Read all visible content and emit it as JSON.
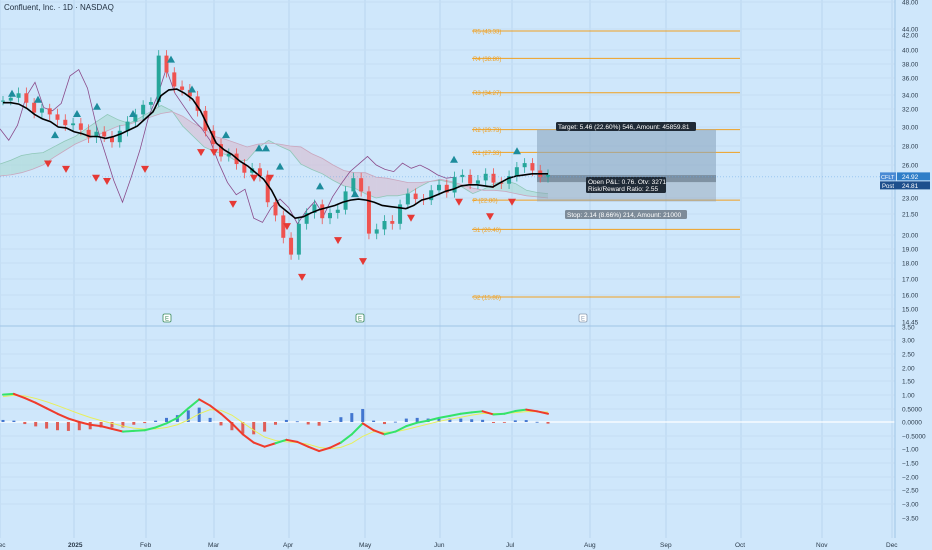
{
  "header": {
    "title": "Confluent, Inc. · 1D · NASDAQ"
  },
  "colors": {
    "bg": "#cfe7fb",
    "up": "#26a69a",
    "down": "#ef5350",
    "pivot": "#f0a020",
    "cloud_up": "#a8d8d0",
    "cloud_down": "#d8b8cc",
    "macd_line": "#ef3b2c",
    "macd_line_up": "#34e36a",
    "signal": "#e8ef5a",
    "hist_pos": "#2962c8",
    "hist_neg": "#e0443a",
    "axis_text": "#2a3a4a",
    "zero_line": "#ffffff"
  },
  "chart_data": {
    "type": "line",
    "symbol": "CFLT",
    "x_labels": [
      "Dec",
      "2025",
      "Feb",
      "Mar",
      "Apr",
      "May",
      "Jun",
      "Jul",
      "Aug",
      "Sep",
      "Oct",
      "Nov",
      "Dec"
    ],
    "price_axis": {
      "ticks": [
        "48.00",
        "44.00",
        "42.00",
        "40.00",
        "38.00",
        "36.00",
        "34.00",
        "32.00",
        "30.00",
        "28.00",
        "26.00",
        "23.00",
        "21.50",
        "20.00",
        "19.00",
        "18.00",
        "17.00",
        "16.00",
        "15.00",
        "14.45"
      ],
      "ylim": [
        14.45,
        48.0
      ]
    },
    "pivots": [
      {
        "label": "R5 (43.33)",
        "value": 43.33
      },
      {
        "label": "R4 (38.80)",
        "value": 38.8
      },
      {
        "label": "R3 (34.27)",
        "value": 34.27
      },
      {
        "label": "R2 (29.73)",
        "value": 29.73
      },
      {
        "label": "R1 (27.33)",
        "value": 27.33
      },
      {
        "label": "P (22.80)",
        "value": 22.8
      },
      {
        "label": "S1 (20.40)",
        "value": 20.4
      },
      {
        "label": "S2 (15.86)",
        "value": 15.86
      }
    ],
    "position": {
      "target": "Target: 5.46 (22.60%) 546, Amount: 45859.81",
      "open": "Open P&L: 0.76, Qty: 3271",
      "ratio": "Risk/Reward Ratio: 2.55",
      "stop": "Stop: 2.14 (8.66%) 214, Amount: 21000",
      "entry": 24.81,
      "target_price": 29.73,
      "stop_price": 22.67
    },
    "price_labels": {
      "last": "24.92",
      "post_tag": "Post",
      "post": "24.81"
    },
    "earnings_markers": [
      "E",
      "E",
      "E"
    ],
    "price_series": {
      "name": "CFLT",
      "values": [
        33.2,
        33.6,
        34.2,
        32.9,
        31.6,
        32.1,
        31.4,
        30.8,
        30.2,
        30.4,
        29.7,
        28.9,
        29.5,
        29.0,
        28.4,
        29.6,
        30.6,
        31.4,
        32.6,
        33.0,
        39.2,
        36.8,
        35.0,
        34.6,
        33.8,
        31.8,
        29.6,
        28.2,
        26.9,
        27.2,
        26.1,
        25.3,
        25.7,
        25.0,
        22.6,
        21.4,
        19.8,
        18.6,
        20.8,
        21.6,
        22.4,
        21.2,
        21.6,
        21.9,
        23.6,
        24.8,
        23.6,
        20.1,
        20.4,
        21.0,
        20.8,
        22.4,
        23.4,
        22.9,
        22.8,
        23.7,
        24.2,
        23.5,
        24.9,
        25.1,
        24.3,
        24.6,
        25.2,
        24.4,
        24.3,
        25.0,
        25.8,
        26.2,
        25.5,
        24.9,
        25.1
      ]
    },
    "baseline": {
      "values": [
        32.9,
        32.9,
        32.7,
        32.1,
        31.4,
        30.9,
        30.6,
        30.0,
        29.9,
        29.5,
        29.3,
        29.0,
        29.0,
        28.8,
        29.0,
        29.3,
        29.7,
        30.1,
        30.9,
        31.7,
        33.9,
        34.6,
        34.7,
        34.2,
        33.4,
        31.8,
        30.0,
        28.3,
        27.6,
        27.1,
        26.4,
        25.9,
        25.3,
        24.7,
        23.7,
        22.3,
        21.7,
        21.2,
        21.3,
        21.6,
        21.9,
        22.1,
        22.3,
        22.6,
        22.8,
        22.9,
        22.8,
        22.6,
        22.3,
        22.2,
        22.1,
        22.0,
        22.3,
        22.8,
        23.0,
        23.3,
        23.6,
        23.8,
        24.1,
        24.2,
        24.2,
        24.1,
        24.0,
        24.4,
        24.8,
        25.0,
        25.1,
        25.2,
        25.2,
        25.2
      ]
    },
    "lagging": {
      "values": [
        29.8,
        28.6,
        30.2,
        33.8,
        35.5,
        32.2,
        31.8,
        32.8,
        36.3,
        37.2,
        34.8,
        30.2,
        27.3,
        24.6,
        22.6,
        24.9,
        27.6,
        31.2,
        33.9,
        37.3,
        34.2,
        32.4,
        30.9,
        29.9,
        28.6,
        26.2,
        24.4,
        23.3,
        23.8,
        21.2,
        20.9,
        22.1,
        22.9,
        22.1,
        20.8,
        21.8,
        22.7,
        21.4,
        23.1,
        24.3,
        25.4,
        26.1,
        26.9,
        26.0,
        25.6,
        25.4,
        26.2,
        25.7,
        26.0,
        25.6,
        25.1,
        24.8,
        24.9
      ]
    },
    "cloud": {
      "a": [
        26.1,
        26.5,
        27.0,
        27.2,
        27.3,
        27.9,
        28.5,
        29.0,
        29.8,
        30.6,
        31.4,
        30.8,
        30.4,
        31.0,
        31.7,
        32.5,
        31.8,
        30.1,
        29.0,
        27.9,
        27.4,
        27.1,
        26.4,
        26.5,
        27.8,
        28.6,
        28.0,
        27.5,
        26.1,
        25.6,
        25.2,
        24.6,
        24.1,
        23.9,
        23.4,
        23.0,
        23.2,
        23.2,
        23.4,
        24.0,
        24.5,
        24.6,
        24.4,
        24.0,
        23.4,
        23.8,
        24.3,
        24.6,
        24.3,
        23.7,
        23.5,
        23.4
      ],
      "b": [
        25.0,
        25.1,
        25.3,
        25.6,
        26.0,
        26.8,
        27.5,
        28.2,
        28.7,
        29.1,
        29.6,
        30.1,
        30.3,
        30.7,
        31.1,
        31.5,
        31.7,
        31.2,
        30.4,
        29.8,
        29.0,
        28.7,
        28.3,
        27.9,
        28.2,
        28.3,
        28.2,
        28.0,
        27.9,
        27.2,
        26.7,
        26.0,
        25.5,
        25.3,
        25.3,
        24.9,
        24.8,
        24.6,
        24.4,
        24.4,
        24.5,
        24.7,
        24.5,
        24.2,
        23.9,
        23.7,
        23.7,
        23.6,
        23.4,
        23.2,
        23.1,
        23.0
      ]
    },
    "signals_up": [
      [
        12,
        34.2
      ],
      [
        38,
        33.4
      ],
      [
        55,
        29.2
      ],
      [
        77,
        31.5
      ],
      [
        97,
        32.4
      ],
      [
        133,
        31.5
      ],
      [
        171,
        38.7
      ],
      [
        192,
        34.7
      ],
      [
        226,
        29.2
      ],
      [
        259,
        27.8
      ],
      [
        266,
        27.8
      ],
      [
        280,
        25.9
      ],
      [
        320,
        24.1
      ],
      [
        355,
        23.4
      ],
      [
        454,
        26.6
      ],
      [
        517,
        27.5
      ]
    ],
    "signals_down": [
      [
        48,
        26.1
      ],
      [
        66,
        25.6
      ],
      [
        96,
        24.8
      ],
      [
        107,
        24.5
      ],
      [
        145,
        25.6
      ],
      [
        201,
        27.3
      ],
      [
        214,
        27.3
      ],
      [
        233,
        22.4
      ],
      [
        254,
        24.8
      ],
      [
        270,
        24.8
      ],
      [
        287,
        20.6
      ],
      [
        302,
        17.1
      ],
      [
        338,
        19.6
      ],
      [
        363,
        18.1
      ],
      [
        411,
        21.2
      ],
      [
        459,
        22.6
      ],
      [
        490,
        21.3
      ],
      [
        512,
        22.6
      ]
    ],
    "macd_axis": {
      "ticks": [
        "3.50",
        "3.00",
        "2.50",
        "2.00",
        "1.50",
        "1.00",
        "0.5000",
        "0.0000",
        "−0.5000",
        "−1.00",
        "−1.50",
        "−2.00",
        "−2.50",
        "−3.00",
        "−3.50"
      ],
      "ylim": [
        -3.5,
        3.5
      ]
    },
    "macd": {
      "values": [
        2.0,
        2.05,
        1.75,
        1.4,
        1.0,
        0.6,
        0.25,
        0.0,
        -0.2,
        -0.3,
        -0.5,
        -0.7,
        -0.65,
        -0.6,
        -0.4,
        -0.1,
        0.3,
        1.0,
        1.65,
        1.2,
        0.6,
        -0.1,
        -0.9,
        -1.5,
        -1.8,
        -1.55,
        -1.3,
        -1.45,
        -1.8,
        -2.12,
        -1.88,
        -1.5,
        -0.9,
        -0.1,
        -0.6,
        -0.9,
        -0.7,
        -0.3,
        -0.05,
        0.1,
        0.3,
        0.45,
        0.6,
        0.7,
        0.78,
        0.55,
        0.6,
        0.8,
        0.9,
        0.78,
        0.6
      ]
    },
    "signal": {
      "values": [
        1.85,
        1.95,
        1.9,
        1.72,
        1.48,
        1.2,
        0.9,
        0.6,
        0.33,
        0.1,
        -0.1,
        -0.3,
        -0.45,
        -0.52,
        -0.5,
        -0.4,
        -0.2,
        0.15,
        0.6,
        0.9,
        0.85,
        0.5,
        -0.05,
        -0.6,
        -1.1,
        -1.35,
        -1.45,
        -1.5,
        -1.62,
        -1.85,
        -1.95,
        -1.85,
        -1.55,
        -1.05,
        -0.7,
        -0.75,
        -0.72,
        -0.55,
        -0.35,
        -0.15,
        0.05,
        0.2,
        0.35,
        0.5,
        0.62,
        0.62,
        0.62,
        0.68,
        0.76,
        0.77,
        0.72
      ]
    },
    "hist": {
      "values": [
        0.15,
        0.1,
        -0.15,
        -0.32,
        -0.48,
        -0.6,
        -0.65,
        -0.6,
        -0.53,
        -0.4,
        -0.4,
        -0.4,
        -0.2,
        -0.08,
        0.1,
        0.3,
        0.5,
        0.85,
        1.05,
        0.3,
        -0.25,
        -0.6,
        -0.85,
        -0.9,
        -0.7,
        -0.2,
        0.15,
        0.05,
        -0.18,
        -0.27,
        0.07,
        0.35,
        0.65,
        0.95,
        0.1,
        -0.15,
        0.02,
        0.25,
        0.3,
        0.25,
        0.25,
        0.25,
        0.25,
        0.2,
        0.16,
        -0.07,
        -0.02,
        0.12,
        0.14,
        0.01,
        -0.12
      ]
    }
  }
}
